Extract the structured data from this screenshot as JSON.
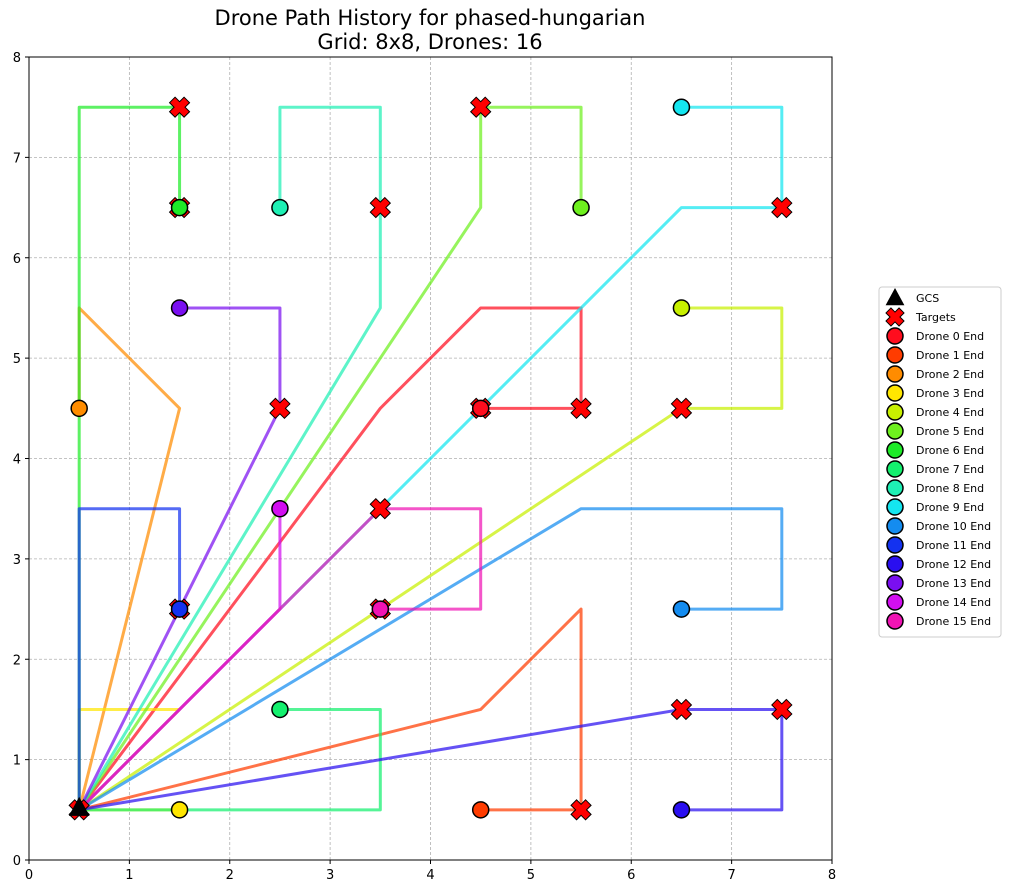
{
  "chart_data": {
    "type": "line",
    "title_line1": "Drone Path History for phased-hungarian",
    "title_line2": "Grid: 8x8, Drones: 16",
    "xlim": [
      0,
      8
    ],
    "ylim": [
      0,
      8
    ],
    "xticks": [
      "0",
      "1",
      "2",
      "3",
      "4",
      "5",
      "6",
      "7",
      "8"
    ],
    "yticks": [
      "0",
      "1",
      "2",
      "3",
      "4",
      "5",
      "6",
      "7",
      "8"
    ],
    "grid": true,
    "legend_position": "right",
    "gcs": {
      "label": "GCS",
      "x": 0.5,
      "y": 0.5
    },
    "targets": {
      "label": "Targets",
      "points": [
        [
          1.5,
          7.5
        ],
        [
          4.5,
          7.5
        ],
        [
          1.5,
          6.5
        ],
        [
          3.5,
          6.5
        ],
        [
          7.5,
          6.5
        ],
        [
          2.5,
          4.5
        ],
        [
          4.5,
          4.5
        ],
        [
          5.5,
          4.5
        ],
        [
          6.5,
          4.5
        ],
        [
          3.5,
          3.5
        ],
        [
          1.5,
          2.5
        ],
        [
          3.5,
          2.5
        ],
        [
          6.5,
          1.5
        ],
        [
          7.5,
          1.5
        ],
        [
          5.5,
          0.5
        ],
        [
          0.5,
          0.5
        ]
      ]
    },
    "series": [
      {
        "name": "Drone 0 End",
        "color": "#ff0d1e",
        "path": [
          [
            0.5,
            0.5
          ],
          [
            3.5,
            4.5
          ],
          [
            4.5,
            5.5
          ],
          [
            5.5,
            5.5
          ],
          [
            5.5,
            4.5
          ],
          [
            4.5,
            4.5
          ]
        ],
        "end": [
          4.5,
          4.5
        ]
      },
      {
        "name": "Drone 1 End",
        "color": "#ff3c00",
        "path": [
          [
            0.5,
            0.5
          ],
          [
            4.5,
            1.5
          ],
          [
            5.5,
            2.5
          ],
          [
            5.5,
            0.5
          ],
          [
            4.5,
            0.5
          ]
        ],
        "end": [
          4.5,
          0.5
        ]
      },
      {
        "name": "Drone 2 End",
        "color": "#ff8c00",
        "path": [
          [
            0.5,
            0.5
          ],
          [
            1.5,
            4.5
          ],
          [
            0.5,
            5.5
          ],
          [
            0.5,
            4.5
          ]
        ],
        "end": [
          0.5,
          4.5
        ]
      },
      {
        "name": "Drone 3 End",
        "color": "#ffe600",
        "path": [
          [
            0.5,
            0.5
          ],
          [
            1.5,
            1.5
          ],
          [
            0.5,
            1.5
          ],
          [
            0.5,
            0.5
          ],
          [
            1.5,
            0.5
          ]
        ],
        "end": [
          1.5,
          0.5
        ]
      },
      {
        "name": "Drone 4 End",
        "color": "#c8f000",
        "path": [
          [
            0.5,
            0.5
          ],
          [
            6.5,
            4.5
          ],
          [
            7.5,
            4.5
          ],
          [
            7.5,
            5.5
          ],
          [
            6.5,
            5.5
          ]
        ],
        "end": [
          6.5,
          5.5
        ]
      },
      {
        "name": "Drone 5 End",
        "color": "#6ef01e",
        "path": [
          [
            0.5,
            0.5
          ],
          [
            4.5,
            6.5
          ],
          [
            4.5,
            7.5
          ],
          [
            5.5,
            7.5
          ],
          [
            5.5,
            6.5
          ]
        ],
        "end": [
          5.5,
          6.5
        ]
      },
      {
        "name": "Drone 6 End",
        "color": "#1eeb28",
        "path": [
          [
            0.5,
            0.5
          ],
          [
            0.5,
            7.5
          ],
          [
            1.5,
            7.5
          ],
          [
            1.5,
            6.5
          ]
        ],
        "end": [
          1.5,
          6.5
        ]
      },
      {
        "name": "Drone 7 End",
        "color": "#14f06e",
        "path": [
          [
            0.5,
            0.5
          ],
          [
            3.5,
            0.5
          ],
          [
            3.5,
            1.5
          ],
          [
            2.5,
            1.5
          ]
        ],
        "end": [
          2.5,
          1.5
        ]
      },
      {
        "name": "Drone 8 End",
        "color": "#1ef0b4",
        "path": [
          [
            0.5,
            0.5
          ],
          [
            3.5,
            5.5
          ],
          [
            3.5,
            7.5
          ],
          [
            2.5,
            7.5
          ],
          [
            2.5,
            6.5
          ]
        ],
        "end": [
          2.5,
          6.5
        ]
      },
      {
        "name": "Drone 9 End",
        "color": "#14e6f0",
        "path": [
          [
            0.5,
            0.5
          ],
          [
            4.5,
            4.5
          ],
          [
            6.5,
            6.5
          ],
          [
            7.5,
            6.5
          ],
          [
            7.5,
            7.5
          ],
          [
            6.5,
            7.5
          ]
        ],
        "end": [
          6.5,
          7.5
        ]
      },
      {
        "name": "Drone 10 End",
        "color": "#148cf0",
        "path": [
          [
            0.5,
            0.5
          ],
          [
            5.5,
            3.5
          ],
          [
            7.5,
            3.5
          ],
          [
            7.5,
            2.5
          ],
          [
            6.5,
            2.5
          ]
        ],
        "end": [
          6.5,
          2.5
        ]
      },
      {
        "name": "Drone 11 End",
        "color": "#1432f0",
        "path": [
          [
            0.5,
            0.5
          ],
          [
            0.5,
            3.5
          ],
          [
            1.5,
            3.5
          ],
          [
            1.5,
            2.5
          ]
        ],
        "end": [
          1.5,
          2.5
        ]
      },
      {
        "name": "Drone 12 End",
        "color": "#2a0ff0",
        "path": [
          [
            0.5,
            0.5
          ],
          [
            6.5,
            1.5
          ],
          [
            7.5,
            1.5
          ],
          [
            7.5,
            0.5
          ],
          [
            6.5,
            0.5
          ]
        ],
        "end": [
          6.5,
          0.5
        ]
      },
      {
        "name": "Drone 13 End",
        "color": "#7a0ff0",
        "path": [
          [
            0.5,
            0.5
          ],
          [
            2.5,
            4.5
          ],
          [
            2.5,
            5.5
          ],
          [
            1.5,
            5.5
          ]
        ],
        "end": [
          1.5,
          5.5
        ]
      },
      {
        "name": "Drone 14 End",
        "color": "#d20ff0",
        "path": [
          [
            0.5,
            0.5
          ],
          [
            2.5,
            2.5
          ],
          [
            2.5,
            3.5
          ]
        ],
        "end": [
          2.5,
          3.5
        ]
      },
      {
        "name": "Drone 15 End",
        "color": "#f014b4",
        "path": [
          [
            0.5,
            0.5
          ],
          [
            3.5,
            3.5
          ],
          [
            4.5,
            3.5
          ],
          [
            4.5,
            2.5
          ],
          [
            3.5,
            2.5
          ]
        ],
        "end": [
          3.5,
          2.5
        ]
      }
    ]
  }
}
